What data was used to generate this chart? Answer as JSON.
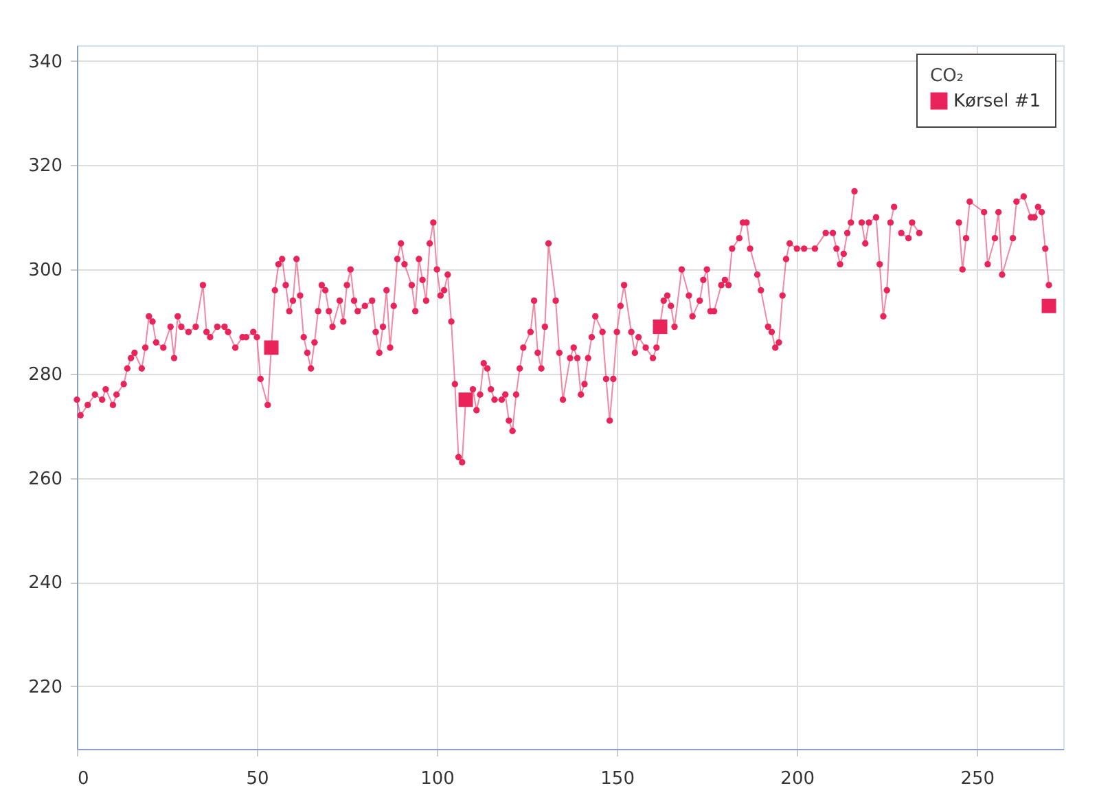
{
  "chart_data": {
    "type": "line",
    "legend_title": "CO₂",
    "xlim": [
      0,
      274
    ],
    "xticks": [
      0,
      50,
      100,
      150,
      200,
      250
    ],
    "ylim": [
      208,
      343
    ],
    "yticks": [
      220,
      240,
      260,
      280,
      300,
      320,
      340
    ],
    "grid": true,
    "legend": "top right",
    "marker": "circle",
    "line_style": "solid",
    "series": [
      {
        "name": "Kørsel #1",
        "color": "#e8245a",
        "x": [
          0,
          1,
          3,
          5,
          7,
          8,
          10,
          11,
          13,
          14,
          15,
          16,
          18,
          19,
          20,
          21,
          22,
          24,
          26,
          27,
          28,
          29,
          31,
          33,
          35,
          36,
          37,
          39,
          41,
          42,
          44,
          46,
          47,
          49,
          50,
          51,
          53,
          55,
          56,
          57,
          58,
          59,
          60,
          61,
          62,
          63,
          64,
          65,
          66,
          67,
          68,
          69,
          70,
          71,
          73,
          74,
          75,
          76,
          77,
          78,
          80,
          82,
          83,
          84,
          85,
          86,
          87,
          88,
          89,
          90,
          91,
          93,
          94,
          95,
          96,
          97,
          98,
          99,
          100,
          101,
          102,
          103,
          104,
          105,
          106,
          107,
          108,
          109,
          110,
          111,
          112,
          113,
          114,
          115,
          116,
          118,
          119,
          120,
          121,
          122,
          123,
          124,
          126,
          127,
          128,
          129,
          130,
          131,
          133,
          134,
          135,
          137,
          138,
          139,
          140,
          141,
          142,
          143,
          144,
          146,
          147,
          148,
          149,
          150,
          151,
          152,
          154,
          155,
          156,
          158,
          160,
          161,
          163,
          164,
          165,
          166,
          168,
          170,
          171,
          173,
          174,
          175,
          176,
          177,
          179,
          180,
          181,
          182,
          184,
          185,
          186,
          187,
          189,
          190,
          192,
          193,
          194,
          195,
          196,
          197,
          198,
          200,
          202,
          205,
          208,
          210,
          211,
          212,
          213,
          214,
          215,
          216,
          217,
          218,
          219,
          220,
          222,
          223,
          224,
          225,
          226,
          227,
          228,
          229,
          231,
          232,
          234,
          237,
          245,
          246,
          247,
          248,
          252,
          253,
          255,
          256,
          257,
          260,
          261,
          263,
          265,
          266,
          267,
          268,
          269,
          270
        ],
        "values": [
          275,
          272,
          274,
          276,
          275,
          277,
          274,
          276,
          278,
          281,
          283,
          284,
          281,
          285,
          291,
          290,
          286,
          285,
          289,
          283,
          291,
          289,
          288,
          289,
          297,
          288,
          287,
          289,
          289,
          288,
          285,
          287,
          287,
          288,
          287,
          279,
          274,
          296,
          301,
          302,
          297,
          292,
          294,
          302,
          295,
          287,
          284,
          281,
          286,
          292,
          297,
          296,
          292,
          289,
          294,
          290,
          297,
          300,
          294,
          292,
          293,
          294,
          288,
          284,
          289,
          296,
          285,
          293,
          302,
          305,
          301,
          297,
          292,
          302,
          298,
          294,
          305,
          309,
          300,
          295,
          296,
          299,
          290,
          278,
          264,
          263,
          275,
          275,
          277,
          273,
          276,
          282,
          281,
          277,
          275,
          275,
          276,
          271,
          269,
          276,
          281,
          285,
          288,
          294,
          284,
          281,
          289,
          305,
          294,
          284,
          275,
          283,
          285,
          283,
          276,
          278,
          283,
          287,
          291,
          288,
          279,
          271,
          279,
          288,
          293,
          297,
          288,
          284,
          287,
          285,
          283,
          285,
          294,
          295,
          293,
          289,
          300,
          295,
          291,
          294,
          298,
          300,
          292,
          292,
          297,
          298,
          297,
          304,
          306,
          309,
          309,
          304,
          299,
          296,
          289,
          288,
          285,
          286,
          295,
          302,
          305,
          304,
          304,
          304,
          307,
          307,
          304,
          301,
          303,
          307,
          309,
          315,
          null,
          309,
          305,
          309,
          310,
          301,
          291,
          296,
          309,
          312,
          null,
          307,
          306,
          309,
          307,
          null,
          309,
          300,
          306,
          313,
          311,
          301,
          306,
          311,
          299,
          306,
          313,
          314,
          310,
          310,
          312,
          311,
          304,
          297
        ]
      },
      {
        "type": "scatter",
        "marker": "square",
        "color": "#e8245a",
        "x": [
          54,
          108,
          162,
          270
        ],
        "values": [
          285,
          275,
          289,
          293
        ]
      }
    ]
  }
}
